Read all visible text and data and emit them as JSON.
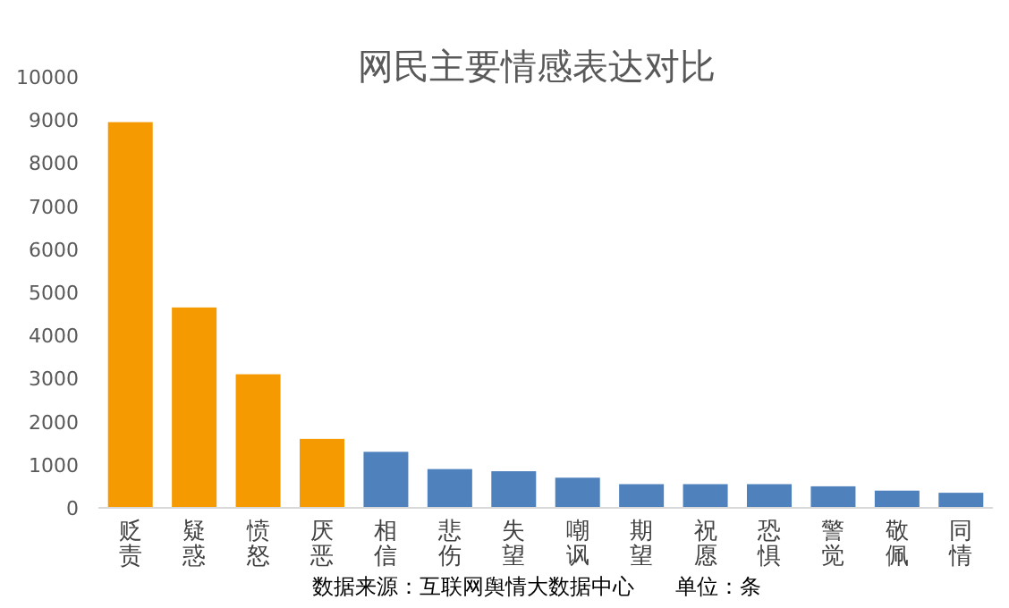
{
  "chart_data": {
    "type": "bar",
    "title": "网民主要情感表达对比",
    "categories": [
      "贬责",
      "疑惑",
      "愤怒",
      "厌恶",
      "相信",
      "悲伤",
      "失望",
      "嘲讽",
      "期望",
      "祝愿",
      "恐惧",
      "警觉",
      "敬佩",
      "同情"
    ],
    "values": [
      8950,
      4650,
      3100,
      1600,
      1300,
      900,
      850,
      700,
      550,
      550,
      550,
      500,
      400,
      350
    ],
    "colors": [
      "#f59a00",
      "#f59a00",
      "#f59a00",
      "#f59a00",
      "#4f81bd",
      "#4f81bd",
      "#4f81bd",
      "#4f81bd",
      "#4f81bd",
      "#4f81bd",
      "#4f81bd",
      "#4f81bd",
      "#4f81bd",
      "#4f81bd"
    ],
    "ylim": [
      0,
      10000
    ],
    "yticks": [
      0,
      1000,
      2000,
      3000,
      4000,
      5000,
      6000,
      7000,
      8000,
      9000,
      10000
    ],
    "grid": false,
    "annotations": [
      "数据来源：互联网舆情大数据中心      单位：条"
    ]
  }
}
